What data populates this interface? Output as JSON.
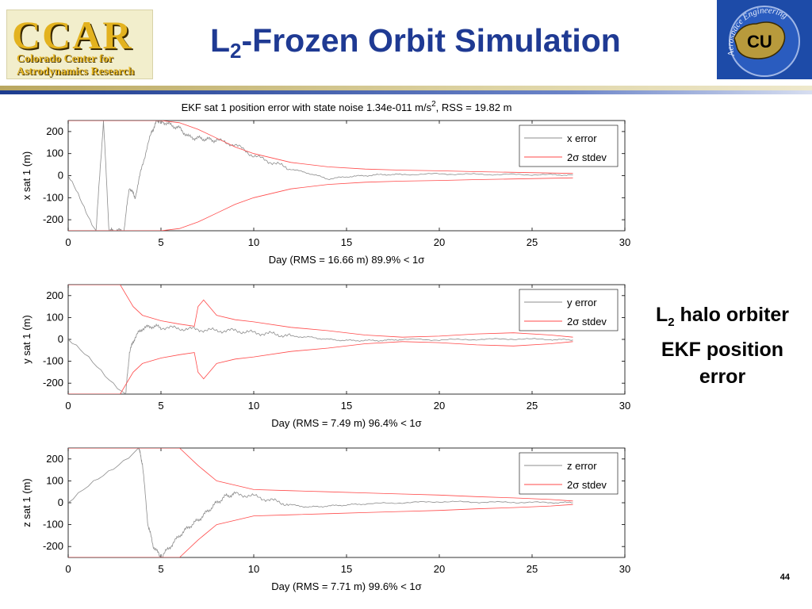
{
  "slide": {
    "title_main": "L",
    "title_sub": "2",
    "title_rest": "-Frozen Orbit Simulation",
    "side_label_1_main": "L",
    "side_label_1_sub": "2",
    "side_label_1_rest": " halo orbiter",
    "side_label_2": "EKF position",
    "side_label_3": "error",
    "page_number": "44"
  },
  "logos": {
    "left_big": "CCAR",
    "left_line1": "Colorado Center for",
    "left_line2": "Astrodynamics Research",
    "right_arc": "Aerospace Engineering",
    "right_mark": "CU"
  },
  "colors": {
    "title": "#1f3a93",
    "error_line": "#8c8c8c",
    "stdev_line": "#ff4a4a"
  },
  "chart_data": [
    {
      "type": "line",
      "title": "EKF sat 1 position error with state noise 1.34e-011 m/s², RSS = 19.82 m",
      "title_pre": "EKF sat 1 position error with state noise 1.34e-011 m/s",
      "title_sup": "2",
      "title_post": ", RSS = 19.82 m",
      "xlabel": "Day (RMS = 16.66 m) 89.9% < 1σ",
      "ylabel": "x sat 1 (m)",
      "xlim": [
        0,
        30
      ],
      "ylim": [
        -250,
        250
      ],
      "xticks": [
        "0",
        "5",
        "10",
        "15",
        "20",
        "25",
        "30"
      ],
      "yticks": [
        "200",
        "100",
        "0",
        "-100",
        "-200"
      ],
      "legend_position": "top-right",
      "series": [
        {
          "name": "x error",
          "x": [
            0,
            1.5,
            1.9,
            2.2,
            2.5,
            3,
            3.3,
            3.6,
            4,
            4.5,
            4.8,
            5,
            5.5,
            6,
            6.5,
            7,
            7.5,
            8,
            9,
            10,
            11,
            12,
            13,
            14,
            15,
            16,
            17,
            18,
            20,
            22,
            24,
            26,
            27.2
          ],
          "y": [
            0,
            -250,
            250,
            -250,
            -250,
            -250,
            -50,
            -100,
            50,
            200,
            250,
            250,
            230,
            215,
            175,
            170,
            165,
            160,
            140,
            90,
            60,
            30,
            10,
            -15,
            -5,
            0,
            5,
            5,
            8,
            6,
            5,
            4,
            3
          ]
        },
        {
          "name": "2σ stdev",
          "x": [
            0,
            1.8,
            2.5,
            3.5,
            5,
            6,
            7,
            8,
            9,
            10,
            12,
            14,
            16,
            18,
            20,
            22,
            24,
            26,
            27.2
          ],
          "y": [
            250,
            250,
            250,
            250,
            250,
            240,
            210,
            170,
            130,
            100,
            60,
            40,
            30,
            25,
            22,
            18,
            15,
            12,
            10
          ]
        }
      ]
    },
    {
      "type": "line",
      "xlabel": "Day (RMS = 7.49 m) 96.4% < 1σ",
      "ylabel": "y sat 1 (m)",
      "xlim": [
        0,
        30
      ],
      "ylim": [
        -250,
        250
      ],
      "xticks": [
        "0",
        "5",
        "10",
        "15",
        "20",
        "25",
        "30"
      ],
      "yticks": [
        "200",
        "100",
        "0",
        "-100",
        "-200"
      ],
      "legend_position": "top-right",
      "series": [
        {
          "name": "y error",
          "x": [
            0,
            3.1,
            3.3,
            3.6,
            4,
            4.5,
            5,
            6,
            7,
            8,
            9,
            10,
            11,
            12,
            13,
            14,
            15,
            16,
            17,
            18,
            20,
            22,
            24,
            26,
            27.2
          ],
          "y": [
            0,
            -250,
            -60,
            10,
            50,
            60,
            55,
            50,
            45,
            40,
            40,
            30,
            25,
            15,
            10,
            0,
            -5,
            -5,
            -5,
            0,
            -2,
            0,
            2,
            0,
            -3
          ]
        },
        {
          "name": "2σ stdev",
          "x": [
            0,
            2.8,
            3.5,
            4,
            5,
            6,
            6.8,
            7,
            7.3,
            8,
            9,
            10,
            12,
            14,
            16,
            18,
            20,
            22,
            24,
            26,
            27.2
          ],
          "y": [
            250,
            250,
            150,
            110,
            85,
            70,
            60,
            150,
            180,
            110,
            90,
            80,
            55,
            40,
            20,
            10,
            15,
            25,
            30,
            20,
            10
          ]
        }
      ]
    },
    {
      "type": "line",
      "xlabel": "Day (RMS = 7.71 m) 99.6% < 1σ",
      "ylabel": "z sat 1 (m)",
      "xlim": [
        0,
        30
      ],
      "ylim": [
        -250,
        250
      ],
      "xticks": [
        "0",
        "5",
        "10",
        "15",
        "20",
        "25",
        "30"
      ],
      "yticks": [
        "200",
        "100",
        "0",
        "-100",
        "-200"
      ],
      "legend_position": "top-right",
      "series": [
        {
          "name": "z error",
          "x": [
            0,
            3.8,
            4,
            4.3,
            4.6,
            5,
            5.5,
            6,
            6.5,
            7,
            7.5,
            8,
            8.5,
            9,
            10,
            11,
            12,
            13,
            14,
            15,
            16,
            18,
            20,
            22,
            24,
            26,
            27.2
          ],
          "y": [
            0,
            250,
            180,
            -100,
            -200,
            -250,
            -200,
            -150,
            -110,
            -80,
            -40,
            0,
            30,
            40,
            30,
            10,
            -10,
            -20,
            -15,
            -10,
            -5,
            0,
            5,
            3,
            2,
            1,
            0
          ]
        },
        {
          "name": "2σ stdev",
          "x": [
            0,
            3.8,
            4.3,
            5,
            6,
            7,
            8,
            9,
            10,
            12,
            14,
            16,
            18,
            20,
            22,
            24,
            26,
            27.2
          ],
          "y": [
            250,
            250,
            250,
            250,
            250,
            170,
            100,
            80,
            60,
            55,
            50,
            45,
            40,
            35,
            28,
            22,
            15,
            8
          ]
        }
      ]
    }
  ]
}
